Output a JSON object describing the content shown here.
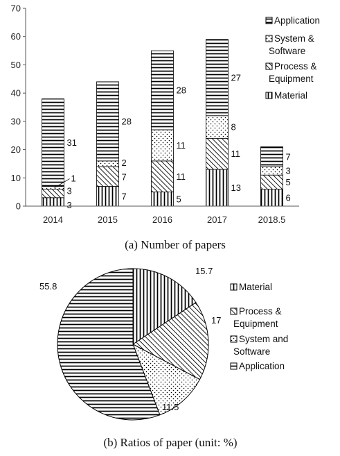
{
  "chart_data": [
    {
      "type": "bar",
      "stacked": true,
      "title": "(a) Number of papers",
      "categories": [
        "2014",
        "2015",
        "2016",
        "2017",
        "2018.5"
      ],
      "yticks": [
        "0",
        "10",
        "20",
        "30",
        "40",
        "50",
        "60",
        "70"
      ],
      "ylim": [
        0,
        70
      ],
      "grid": false,
      "legend_position": "right",
      "series": [
        {
          "name": "Material",
          "pattern": "vertical",
          "values": [
            3,
            7,
            5,
            13,
            6
          ],
          "labels": [
            "3",
            "7",
            "5",
            "13",
            "6"
          ]
        },
        {
          "name": "Process & Equipment",
          "pattern": "diagonal",
          "values": [
            3,
            7,
            11,
            11,
            5
          ],
          "labels": [
            "3",
            "7",
            "11",
            "11",
            "5"
          ]
        },
        {
          "name": "System & Software",
          "pattern": "dots",
          "values": [
            1,
            2,
            11,
            8,
            3
          ],
          "labels": [
            "1",
            "2",
            "11",
            "8",
            "3"
          ]
        },
        {
          "name": "Application",
          "pattern": "horizontal",
          "values": [
            31,
            28,
            28,
            27,
            7
          ],
          "labels": [
            "31",
            "28",
            "28",
            "27",
            "7"
          ]
        }
      ],
      "legend_order": [
        3,
        2,
        1,
        0
      ]
    },
    {
      "type": "pie",
      "title": "(b) Ratios of paper (unit: %)",
      "legend_position": "right",
      "slices": [
        {
          "name": "Material",
          "value": 15.7,
          "label": "15.7",
          "pattern": "vertical"
        },
        {
          "name": "Process & Equipment",
          "value": 17,
          "label": "17",
          "pattern": "diagonal"
        },
        {
          "name": "System and Software",
          "value": 11.5,
          "label": "11.5",
          "pattern": "dots"
        },
        {
          "name": "Application",
          "value": 55.8,
          "label": "55.8",
          "pattern": "horizontal"
        }
      ]
    }
  ]
}
